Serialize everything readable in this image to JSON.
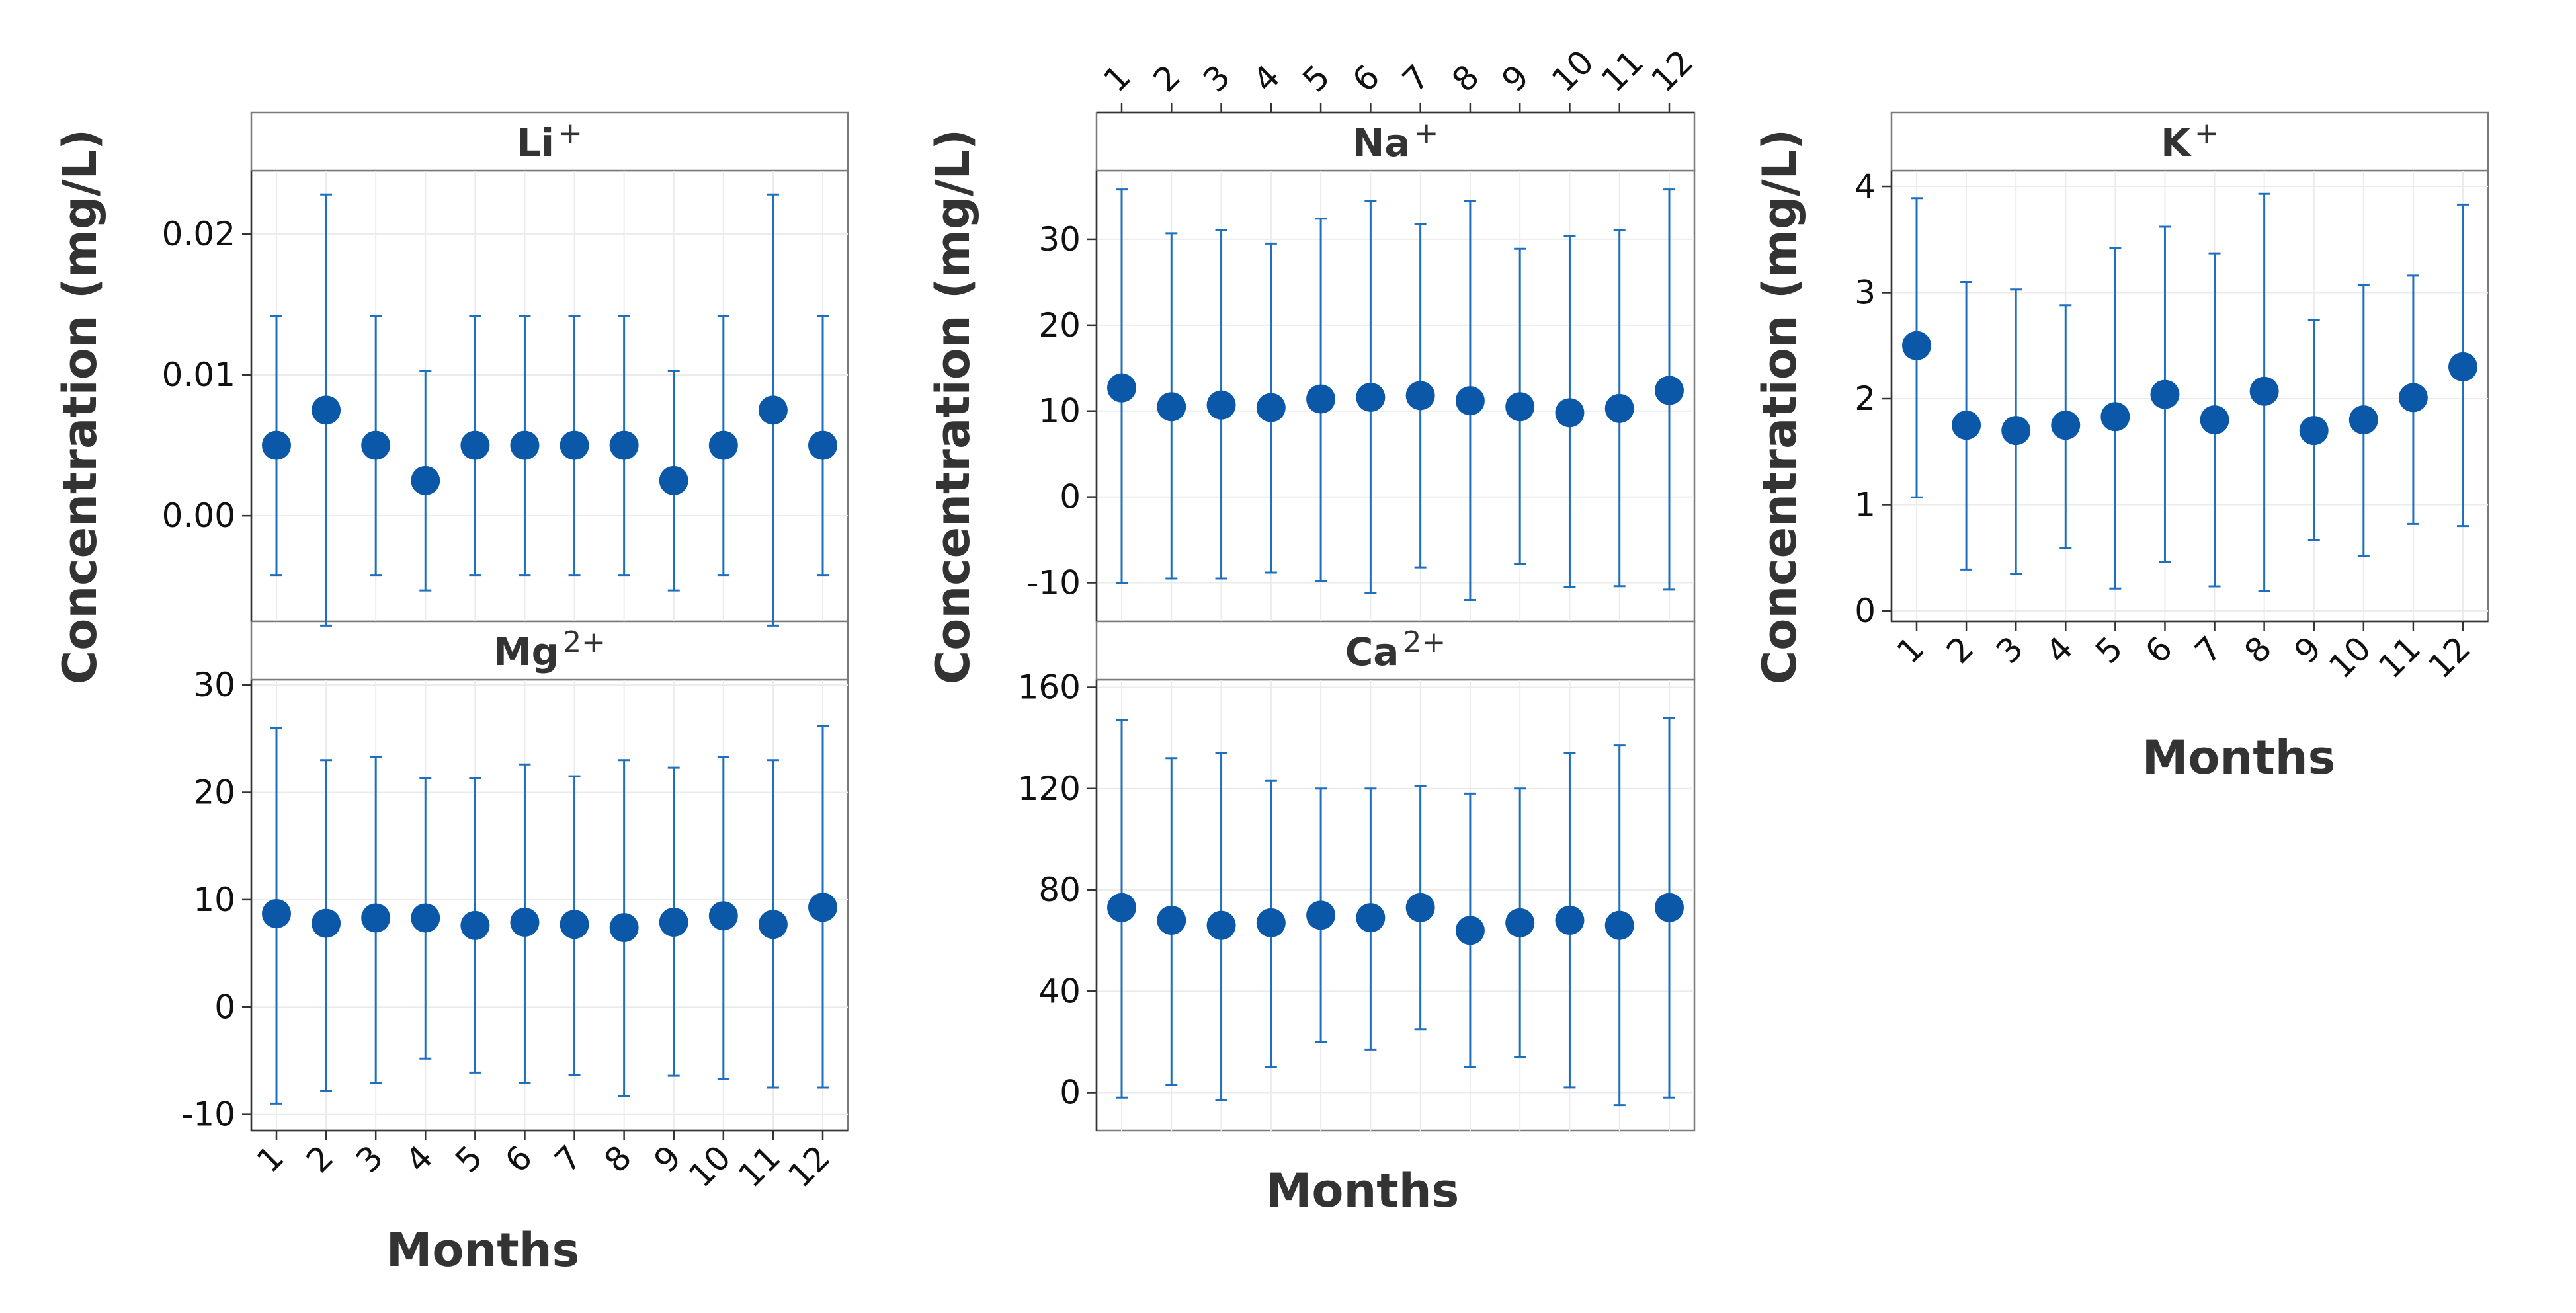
{
  "chart_data": {
    "type": "scatter",
    "x_categories": [
      "1",
      "2",
      "3",
      "4",
      "5",
      "6",
      "7",
      "8",
      "9",
      "10",
      "11",
      "12"
    ],
    "xlabel": "Months",
    "ylabel": "Concentration (mg/L)",
    "grid": true,
    "colors": {
      "point": "#0b57a8",
      "error_bar": "#1f6fbf"
    },
    "panels": [
      {
        "id": "li",
        "ion": "Li",
        "charge": "+",
        "yticks": [
          "0.00",
          "0.01",
          "0.02"
        ],
        "ytick_values": [
          0.0,
          0.01,
          0.02
        ],
        "ylim": [
          -0.0075,
          0.0245
        ],
        "mean": [
          0.005,
          0.0075,
          0.005,
          0.0025,
          0.005,
          0.005,
          0.005,
          0.005,
          0.0025,
          0.005,
          0.0075,
          0.005
        ],
        "lower": [
          -0.0042,
          -0.0078,
          -0.0042,
          -0.0053,
          -0.0042,
          -0.0042,
          -0.0042,
          -0.0042,
          -0.0053,
          -0.0042,
          -0.0078,
          -0.0042
        ],
        "upper": [
          0.0142,
          0.0228,
          0.0142,
          0.0103,
          0.0142,
          0.0142,
          0.0142,
          0.0142,
          0.0103,
          0.0142,
          0.0228,
          0.0142
        ]
      },
      {
        "id": "mg",
        "ion": "Mg",
        "charge": "2+",
        "yticks": [
          "-10",
          "0",
          "10",
          "20",
          "30"
        ],
        "ytick_values": [
          -10,
          0,
          10,
          20,
          30
        ],
        "ylim": [
          -11.5,
          30.5
        ],
        "mean": [
          8.7,
          7.8,
          8.3,
          8.3,
          7.6,
          7.9,
          7.7,
          7.4,
          7.9,
          8.5,
          7.7,
          9.3
        ],
        "lower": [
          -9.0,
          -7.8,
          -7.1,
          -4.8,
          -6.1,
          -7.1,
          -6.3,
          -8.3,
          -6.4,
          -6.7,
          -7.5,
          -7.5
        ],
        "upper": [
          26.0,
          23.0,
          23.3,
          21.3,
          21.3,
          22.6,
          21.5,
          23.0,
          22.3,
          23.3,
          23.0,
          26.2
        ]
      },
      {
        "id": "na",
        "ion": "Na",
        "charge": "+",
        "yticks": [
          "-10",
          "0",
          "10",
          "20",
          "30"
        ],
        "ytick_values": [
          -10,
          0,
          10,
          20,
          30
        ],
        "ylim": [
          -14.5,
          38.0
        ],
        "mean": [
          12.7,
          10.5,
          10.7,
          10.4,
          11.4,
          11.6,
          11.8,
          11.2,
          10.5,
          9.8,
          10.3,
          12.4
        ],
        "lower": [
          -10.0,
          -9.5,
          -9.5,
          -8.8,
          -9.8,
          -11.2,
          -8.2,
          -12.0,
          -7.8,
          -10.5,
          -10.4,
          -10.8
        ],
        "upper": [
          35.8,
          30.7,
          31.1,
          29.5,
          32.4,
          34.5,
          31.8,
          34.5,
          28.9,
          30.4,
          31.1,
          35.8
        ]
      },
      {
        "id": "ca",
        "ion": "Ca",
        "charge": "2+",
        "yticks": [
          "0",
          "40",
          "80",
          "120",
          "160"
        ],
        "ytick_values": [
          0,
          40,
          80,
          120,
          160
        ],
        "ylim": [
          -15,
          163
        ],
        "mean": [
          73,
          68,
          66,
          67,
          70,
          69,
          73,
          64,
          67,
          68,
          66,
          73
        ],
        "lower": [
          -2,
          3,
          -3,
          10,
          20,
          17,
          25,
          10,
          14,
          2,
          -5,
          -2
        ],
        "upper": [
          147,
          132,
          134,
          123,
          120,
          120,
          121,
          118,
          120,
          134,
          137,
          148
        ]
      },
      {
        "id": "k",
        "ion": "K",
        "charge": "+",
        "yticks": [
          "0",
          "1",
          "2",
          "3",
          "4"
        ],
        "ytick_values": [
          0,
          1,
          2,
          3,
          4
        ],
        "ylim": [
          -0.1,
          4.15
        ],
        "mean": [
          2.5,
          1.75,
          1.7,
          1.75,
          1.83,
          2.04,
          1.8,
          2.07,
          1.7,
          1.8,
          2.01,
          2.3
        ],
        "lower": [
          1.07,
          0.39,
          0.35,
          0.59,
          0.21,
          0.46,
          0.23,
          0.19,
          0.67,
          0.52,
          0.82,
          0.8
        ],
        "upper": [
          3.89,
          3.1,
          3.03,
          2.88,
          3.42,
          3.62,
          3.37,
          3.93,
          2.74,
          3.07,
          3.16,
          3.83
        ]
      }
    ]
  }
}
